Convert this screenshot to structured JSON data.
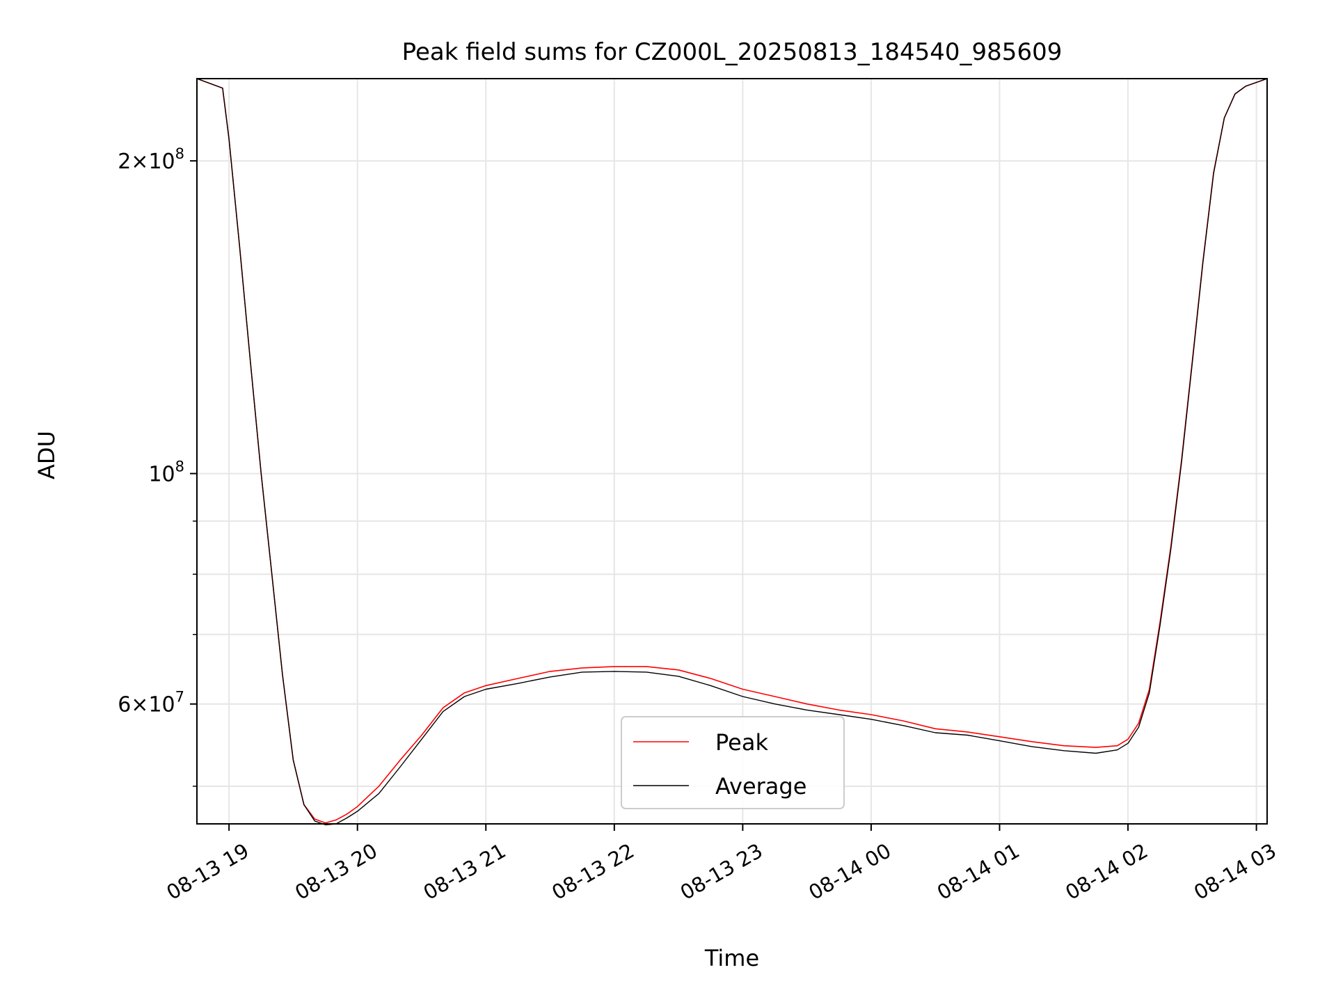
{
  "chart_data": {
    "type": "line",
    "title": "Peak field sums for CZ000L_20250813_184540_985609",
    "xlabel": "Time",
    "ylabel": "ADU",
    "y_scale": "log",
    "xlim": [
      "2025-08-13 18:45",
      "2025-08-14 03:05"
    ],
    "ylim": [
      46000000,
      240000000
    ],
    "x_ticks": [
      {
        "value": "2025-08-13 19:00",
        "label": "08-13 19"
      },
      {
        "value": "2025-08-13 20:00",
        "label": "08-13 20"
      },
      {
        "value": "2025-08-13 21:00",
        "label": "08-13 21"
      },
      {
        "value": "2025-08-13 22:00",
        "label": "08-13 22"
      },
      {
        "value": "2025-08-13 23:00",
        "label": "08-13 23"
      },
      {
        "value": "2025-08-14 00:00",
        "label": "08-14 00"
      },
      {
        "value": "2025-08-14 01:00",
        "label": "08-14 01"
      },
      {
        "value": "2025-08-14 02:00",
        "label": "08-14 02"
      },
      {
        "value": "2025-08-14 03:00",
        "label": "08-14 03"
      }
    ],
    "y_major_ticks": [
      {
        "value": 60000000,
        "mantissa": "6",
        "exp": "7"
      },
      {
        "value": 100000000,
        "mantissa": "",
        "exp": "8"
      },
      {
        "value": 200000000,
        "mantissa": "2",
        "exp": "8"
      }
    ],
    "y_minor_ticks": [
      50000000,
      70000000,
      80000000,
      90000000
    ],
    "grid": true,
    "legend_position": "lower center",
    "series": [
      {
        "name": "Peak",
        "color": "#ff0000",
        "x": [
          "2025-08-13 18:45",
          "2025-08-13 18:57",
          "2025-08-13 19:00",
          "2025-08-13 19:05",
          "2025-08-13 19:10",
          "2025-08-13 19:15",
          "2025-08-13 19:20",
          "2025-08-13 19:25",
          "2025-08-13 19:30",
          "2025-08-13 19:35",
          "2025-08-13 19:40",
          "2025-08-13 19:45",
          "2025-08-13 19:50",
          "2025-08-13 19:55",
          "2025-08-13 20:00",
          "2025-08-13 20:10",
          "2025-08-13 20:20",
          "2025-08-13 20:30",
          "2025-08-13 20:40",
          "2025-08-13 20:50",
          "2025-08-13 21:00",
          "2025-08-13 21:15",
          "2025-08-13 21:30",
          "2025-08-13 21:45",
          "2025-08-13 22:00",
          "2025-08-13 22:15",
          "2025-08-13 22:30",
          "2025-08-13 22:45",
          "2025-08-13 23:00",
          "2025-08-13 23:15",
          "2025-08-13 23:30",
          "2025-08-13 23:45",
          "2025-08-14 00:00",
          "2025-08-14 00:15",
          "2025-08-14 00:30",
          "2025-08-14 00:45",
          "2025-08-14 01:00",
          "2025-08-14 01:15",
          "2025-08-14 01:30",
          "2025-08-14 01:45",
          "2025-08-14 01:55",
          "2025-08-14 02:00",
          "2025-08-14 02:05",
          "2025-08-14 02:10",
          "2025-08-14 02:15",
          "2025-08-14 02:20",
          "2025-08-14 02:25",
          "2025-08-14 02:30",
          "2025-08-14 02:35",
          "2025-08-14 02:40",
          "2025-08-14 02:45",
          "2025-08-14 02:50",
          "2025-08-14 02:55",
          "2025-08-14 03:05"
        ],
        "y": [
          240000000,
          235000000,
          210000000,
          165000000,
          128000000,
          100000000,
          80000000,
          64000000,
          53000000,
          48000000,
          46500000,
          46100000,
          46400000,
          47000000,
          47800000,
          50000000,
          53000000,
          56000000,
          59500000,
          61500000,
          62500000,
          63500000,
          64500000,
          65000000,
          65200000,
          65200000,
          64700000,
          63500000,
          62000000,
          61000000,
          60000000,
          59200000,
          58600000,
          57800000,
          56800000,
          56400000,
          55800000,
          55200000,
          54700000,
          54500000,
          54700000,
          55500000,
          57500000,
          62000000,
          72000000,
          85000000,
          103000000,
          128000000,
          160000000,
          195000000,
          220000000,
          232000000,
          236000000,
          240000000
        ]
      },
      {
        "name": "Average",
        "color": "#000000",
        "x": [
          "2025-08-13 18:45",
          "2025-08-13 18:57",
          "2025-08-13 19:00",
          "2025-08-13 19:05",
          "2025-08-13 19:10",
          "2025-08-13 19:15",
          "2025-08-13 19:20",
          "2025-08-13 19:25",
          "2025-08-13 19:30",
          "2025-08-13 19:35",
          "2025-08-13 19:40",
          "2025-08-13 19:45",
          "2025-08-13 19:50",
          "2025-08-13 19:55",
          "2025-08-13 20:00",
          "2025-08-13 20:10",
          "2025-08-13 20:20",
          "2025-08-13 20:30",
          "2025-08-13 20:40",
          "2025-08-13 20:50",
          "2025-08-13 21:00",
          "2025-08-13 21:15",
          "2025-08-13 21:30",
          "2025-08-13 21:45",
          "2025-08-13 22:00",
          "2025-08-13 22:15",
          "2025-08-13 22:30",
          "2025-08-13 22:45",
          "2025-08-13 23:00",
          "2025-08-13 23:15",
          "2025-08-13 23:30",
          "2025-08-13 23:45",
          "2025-08-14 00:00",
          "2025-08-14 00:15",
          "2025-08-14 00:30",
          "2025-08-14 00:45",
          "2025-08-14 01:00",
          "2025-08-14 01:15",
          "2025-08-14 01:30",
          "2025-08-14 01:45",
          "2025-08-14 01:55",
          "2025-08-14 02:00",
          "2025-08-14 02:05",
          "2025-08-14 02:10",
          "2025-08-14 02:15",
          "2025-08-14 02:20",
          "2025-08-14 02:25",
          "2025-08-14 02:30",
          "2025-08-14 02:35",
          "2025-08-14 02:40",
          "2025-08-14 02:45",
          "2025-08-14 02:50",
          "2025-08-14 02:55",
          "2025-08-14 03:05"
        ],
        "y": [
          240000000,
          235000000,
          210000000,
          165000000,
          128000000,
          100000000,
          80000000,
          64000000,
          53000000,
          48000000,
          46300000,
          45900000,
          46000000,
          46600000,
          47300000,
          49200000,
          52200000,
          55500000,
          59000000,
          61000000,
          62000000,
          62800000,
          63700000,
          64400000,
          64500000,
          64400000,
          63800000,
          62500000,
          61000000,
          60000000,
          59200000,
          58600000,
          58000000,
          57200000,
          56300000,
          56000000,
          55300000,
          54600000,
          54100000,
          53800000,
          54200000,
          55000000,
          57000000,
          61500000,
          71500000,
          84500000,
          102500000,
          127500000,
          159500000,
          194500000,
          220000000,
          232000000,
          236000000,
          240000000
        ]
      }
    ]
  }
}
